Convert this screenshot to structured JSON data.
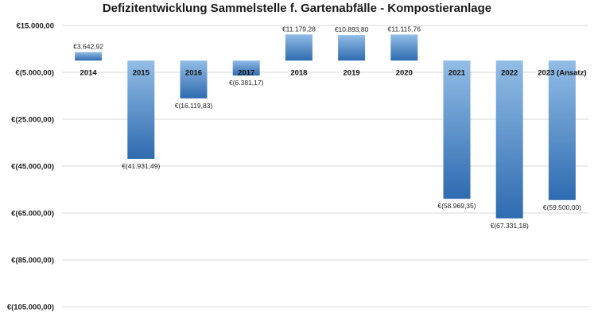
{
  "chart_data": {
    "type": "bar",
    "title": "Defizitentwicklung Sammelstelle f. Gartenabfälle - Kompostieranlage",
    "xlabel": "",
    "ylabel": "",
    "categories": [
      "2014",
      "2015",
      "2016",
      "2017",
      "2018",
      "2019",
      "2020",
      "2021",
      "2022",
      "2023 (Ansatz)"
    ],
    "values": [
      3642.92,
      -41931.49,
      -16119.83,
      -6381.17,
      11179.28,
      10893.8,
      11115.76,
      -58969.35,
      -67331.18,
      -59500.0
    ],
    "data_labels": [
      "€3.642,92",
      "€(41.931,49)",
      "€(16.119,83)",
      "€(6.381,17)",
      "€11.179,28",
      "€10.893,80",
      "€11.115,76",
      "€(58.969,35)",
      "€(67.331,18)",
      "€(59.500,00)"
    ],
    "ylim": [
      -105000,
      15000
    ],
    "yticks": [
      15000,
      -5000,
      -25000,
      -45000,
      -65000,
      -85000,
      -105000
    ],
    "ytick_labels": [
      "€15.000,00",
      "€(5.000,00)",
      "€(25.000,00)",
      "€(45.000,00)",
      "€(65.000,00)",
      "€(85.000,00)",
      "€(105.000,00)"
    ],
    "category_axis_at": 0,
    "grid": true,
    "legend": "none",
    "colors": {
      "bar_top": "#92bde6",
      "bar_bottom": "#2e6bb0",
      "grid": "#d9d9d9"
    }
  }
}
